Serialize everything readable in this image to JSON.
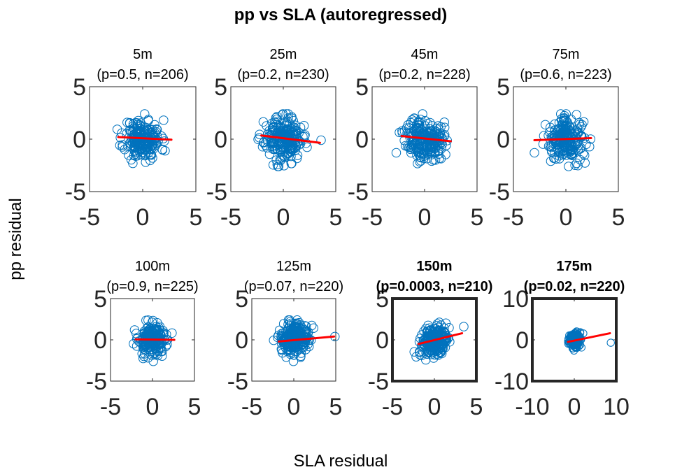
{
  "figure": {
    "title": "pp vs SLA (autoregressed)",
    "xlabel": "SLA residual",
    "ylabel": "pp residual"
  },
  "chart_data": [
    {
      "type": "scatter",
      "title": "5m",
      "subtitle": "(p=0.5, n=206)",
      "bold": false,
      "highlight": false,
      "xlim": [
        -5,
        5
      ],
      "ylim": [
        -5,
        5
      ],
      "xticks": [
        -5,
        0,
        5
      ],
      "yticks": [
        -5,
        0,
        5
      ],
      "x_tick_labels": [
        "-5",
        "0",
        "5"
      ],
      "y_tick_labels": [
        "-5",
        "0",
        "5"
      ],
      "n": 206,
      "seed": 11,
      "spread": [
        0.85,
        0.95
      ],
      "fit": {
        "x": [
          -2.3,
          2.7
        ],
        "y": [
          0.2,
          -0.05
        ]
      },
      "outliers": []
    },
    {
      "type": "scatter",
      "title": "25m",
      "subtitle": "(p=0.2, n=230)",
      "bold": false,
      "highlight": false,
      "xlim": [
        -5,
        5
      ],
      "ylim": [
        -5,
        5
      ],
      "xticks": [
        -5,
        0,
        5
      ],
      "yticks": [
        -5,
        0,
        5
      ],
      "x_tick_labels": [
        "-5",
        "0",
        "5"
      ],
      "y_tick_labels": [
        "-5",
        "0",
        "5"
      ],
      "n": 230,
      "seed": 23,
      "spread": [
        0.9,
        1.0
      ],
      "fit": {
        "x": [
          -2.1,
          3.5
        ],
        "y": [
          0.35,
          -0.35
        ]
      },
      "outliers": [
        [
          3.6,
          -0.1
        ]
      ]
    },
    {
      "type": "scatter",
      "title": "45m",
      "subtitle": "(p=0.2, n=228)",
      "bold": false,
      "highlight": false,
      "xlim": [
        -5,
        5
      ],
      "ylim": [
        -5,
        5
      ],
      "xticks": [
        -5,
        0,
        5
      ],
      "yticks": [
        -5,
        0,
        5
      ],
      "x_tick_labels": [
        "-5",
        "0",
        "5"
      ],
      "y_tick_labels": [
        "-5",
        "0",
        "5"
      ],
      "n": 228,
      "seed": 37,
      "spread": [
        0.9,
        1.0
      ],
      "fit": {
        "x": [
          -2.2,
          2.5
        ],
        "y": [
          0.3,
          -0.2
        ]
      },
      "outliers": [
        [
          -2.7,
          -1.3
        ]
      ]
    },
    {
      "type": "scatter",
      "title": "75m",
      "subtitle": "(p=0.6, n=223)",
      "bold": false,
      "highlight": false,
      "xlim": [
        -5,
        5
      ],
      "ylim": [
        -5,
        5
      ],
      "xticks": [
        -5,
        0,
        5
      ],
      "yticks": [
        -5,
        0,
        5
      ],
      "x_tick_labels": [
        "-5",
        "0",
        "5"
      ],
      "y_tick_labels": [
        "-5",
        "0",
        "5"
      ],
      "n": 223,
      "seed": 41,
      "spread": [
        0.9,
        1.0
      ],
      "fit": {
        "x": [
          -3.0,
          2.4
        ],
        "y": [
          -0.1,
          0.1
        ]
      },
      "outliers": [
        [
          -3.0,
          -1.3
        ]
      ]
    },
    {
      "type": "scatter",
      "title": "100m",
      "subtitle": "(p=0.9, n=225)",
      "bold": false,
      "highlight": false,
      "xlim": [
        -5,
        5
      ],
      "ylim": [
        -5,
        5
      ],
      "xticks": [
        -5,
        0,
        5
      ],
      "yticks": [
        -5,
        0,
        5
      ],
      "x_tick_labels": [
        "-5",
        "0",
        "5"
      ],
      "y_tick_labels": [
        "-5",
        "0",
        "5"
      ],
      "n": 225,
      "seed": 53,
      "spread": [
        0.85,
        0.95
      ],
      "fit": {
        "x": [
          -2.0,
          2.6
        ],
        "y": [
          0.05,
          0.0
        ]
      },
      "outliers": []
    },
    {
      "type": "scatter",
      "title": "125m",
      "subtitle": "(p=0.07, n=220)",
      "bold": false,
      "highlight": false,
      "xlim": [
        -5,
        5
      ],
      "ylim": [
        -5,
        5
      ],
      "xticks": [
        -5,
        0,
        5
      ],
      "yticks": [
        -5,
        0,
        5
      ],
      "x_tick_labels": [
        "-5",
        "0",
        "5"
      ],
      "y_tick_labels": [
        "-5",
        "0",
        "5"
      ],
      "n": 220,
      "seed": 67,
      "spread": [
        0.85,
        1.0
      ],
      "fit": {
        "x": [
          -1.8,
          4.8
        ],
        "y": [
          -0.2,
          0.4
        ]
      },
      "outliers": [
        [
          4.9,
          0.4
        ]
      ]
    },
    {
      "type": "scatter",
      "title": "150m",
      "subtitle": "(p=0.0003, n=210)",
      "bold": true,
      "highlight": true,
      "xlim": [
        -5,
        5
      ],
      "ylim": [
        -5,
        5
      ],
      "xticks": [
        -5,
        0,
        5
      ],
      "yticks": [
        -5,
        0,
        5
      ],
      "x_tick_labels": [
        "-5",
        "0",
        "5"
      ],
      "y_tick_labels": [
        "-5",
        "0",
        "5"
      ],
      "n": 210,
      "seed": 79,
      "spread": [
        0.85,
        0.9
      ],
      "fit": {
        "x": [
          -1.9,
          3.3
        ],
        "y": [
          -0.5,
          0.8
        ]
      },
      "outliers": [
        [
          3.5,
          1.6
        ]
      ]
    },
    {
      "type": "scatter",
      "title": "175m",
      "subtitle": "(p=0.02, n=220)",
      "bold": true,
      "highlight": true,
      "xlim": [
        -10,
        10
      ],
      "ylim": [
        -10,
        10
      ],
      "xticks": [
        -10,
        0,
        10
      ],
      "yticks": [
        -10,
        0,
        10
      ],
      "x_tick_labels": [
        "-10",
        "0",
        "10"
      ],
      "y_tick_labels": [
        "-10",
        "0",
        "10"
      ],
      "n": 220,
      "seed": 97,
      "spread": [
        0.7,
        0.9
      ],
      "fit": {
        "x": [
          -1.5,
          8.5
        ],
        "y": [
          -0.5,
          1.6
        ]
      },
      "outliers": [
        [
          8.7,
          -0.7
        ]
      ]
    }
  ]
}
